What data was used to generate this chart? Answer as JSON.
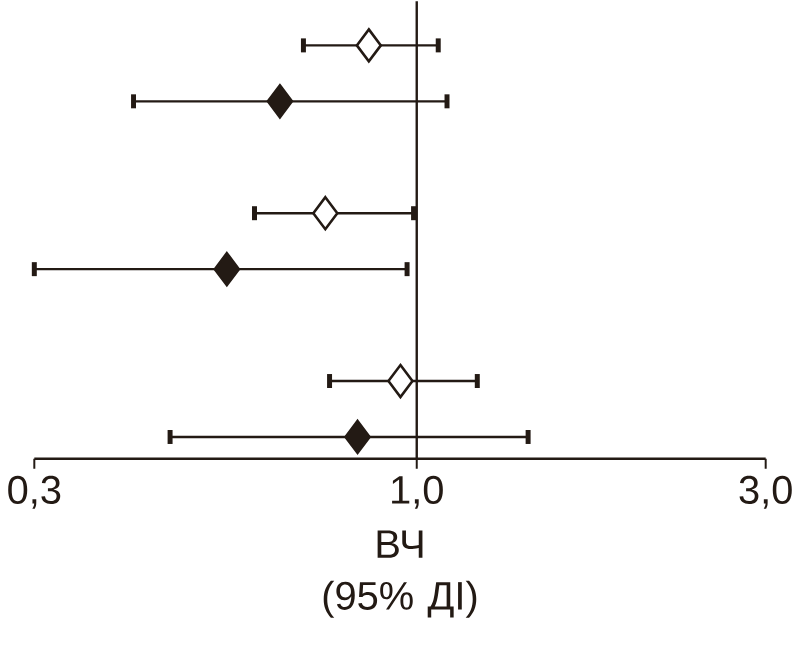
{
  "chart_data": {
    "type": "scatter",
    "orientation": "horizontal",
    "xlabel": "ВЧ (95% ДІ)",
    "categories": [
      null,
      null,
      null,
      null,
      null,
      null,
      null,
      null
    ],
    "series": [
      {
        "color": "#ffffff",
        "values": [
          0.86,
          null,
          null,
          0.75,
          null,
          null,
          0.95,
          null
        ],
        "errors": [
          [
            0.7,
            1.07
          ],
          null,
          null,
          [
            0.6,
            0.99
          ],
          null,
          null,
          [
            0.76,
            1.21
          ],
          null
        ]
      },
      {
        "color": "#231a14",
        "values": [
          null,
          0.65,
          null,
          null,
          0.55,
          null,
          null,
          0.83
        ],
        "errors": [
          null,
          [
            0.41,
            1.1
          ],
          null,
          null,
          [
            0.3,
            0.97
          ],
          null,
          null,
          [
            0.46,
            1.42
          ]
        ]
      }
    ],
    "log": "x",
    "xlim": [
      0.3,
      3.0
    ],
    "xticks": [
      {
        "value": 0.3,
        "label": "0,3"
      },
      {
        "value": 1.0,
        "label": "1,0"
      },
      {
        "value": 3.0,
        "label": "3,0"
      }
    ],
    "ref_lines": [
      {
        "axis": "x",
        "value": 1.0
      }
    ],
    "tick_labels": "x",
    "marker": "diamond"
  }
}
